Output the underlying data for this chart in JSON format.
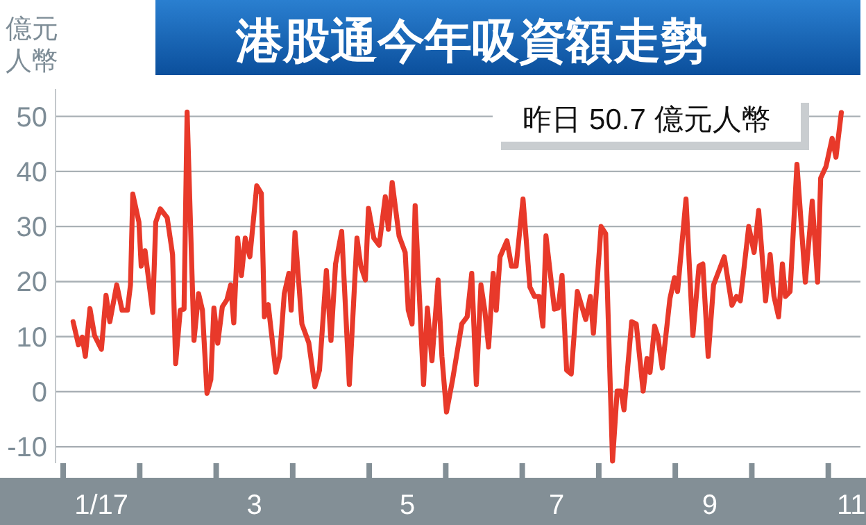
{
  "chart_data": {
    "type": "line",
    "title": "港股通今年吸資額走勢",
    "ylabel": "億元人幣",
    "annotations": [
      "昨日 50.7 億元人幣"
    ],
    "x": [
      1.13,
      1.2,
      1.25,
      1.29,
      1.35,
      1.41,
      1.5,
      1.56,
      1.61,
      1.7,
      1.77,
      1.84,
      1.88,
      1.91,
      1.99,
      2.02,
      2.07,
      2.17,
      2.21,
      2.27,
      2.36,
      2.43,
      2.47,
      2.53,
      2.58,
      2.62,
      2.71,
      2.77,
      2.82,
      2.88,
      2.93,
      2.97,
      3.02,
      3.08,
      3.14,
      3.19,
      3.23,
      3.28,
      3.33,
      3.38,
      3.44,
      3.53,
      3.59,
      3.63,
      3.68,
      3.78,
      3.83,
      3.89,
      3.95,
      3.98,
      4.03,
      4.12,
      4.21,
      4.29,
      4.35,
      4.44,
      4.5,
      4.56,
      4.64,
      4.74,
      4.84,
      4.89,
      4.95,
      4.99,
      5.06,
      5.13,
      5.21,
      5.25,
      5.3,
      5.39,
      5.47,
      5.51,
      5.56,
      5.6,
      5.71,
      5.76,
      5.82,
      5.9,
      5.95,
      6.01,
      6.09,
      6.21,
      6.28,
      6.34,
      6.4,
      6.46,
      6.51,
      6.56,
      6.62,
      6.66,
      6.71,
      6.8,
      6.86,
      6.92,
      7.01,
      7.1,
      7.16,
      7.22,
      7.27,
      7.31,
      7.42,
      7.47,
      7.52,
      7.58,
      7.64,
      7.72,
      7.83,
      7.89,
      7.93,
      8.03,
      8.09,
      8.18,
      8.24,
      8.29,
      8.33,
      8.43,
      8.49,
      8.58,
      8.63,
      8.67,
      8.73,
      8.77,
      8.83,
      8.93,
      8.99,
      9.03,
      9.14,
      9.23,
      9.31,
      9.36,
      9.43,
      9.5,
      9.64,
      9.74,
      9.8,
      9.85,
      9.96,
      10.03,
      10.09,
      10.18,
      10.24,
      10.29,
      10.35,
      10.4,
      10.44,
      10.5,
      10.59,
      10.7,
      10.79,
      10.86,
      10.9,
      10.97,
      11.05,
      11.1,
      11.17
    ],
    "series": [
      {
        "color": "#e8392a",
        "values": [
          12.7,
          8.5,
          9.9,
          6.4,
          15.1,
          10.2,
          7.7,
          17.5,
          12.7,
          19.4,
          14.8,
          14.8,
          19.4,
          35.9,
          30.8,
          22.8,
          25.6,
          14.4,
          30.8,
          33.2,
          31.6,
          24.9,
          5.1,
          14.8,
          15,
          50.8,
          9.3,
          17.8,
          14.8,
          -0.3,
          2.2,
          15.2,
          8.8,
          15.4,
          16.7,
          19.4,
          12.5,
          27.9,
          21.1,
          27.9,
          24.5,
          37.4,
          36,
          13.6,
          15.8,
          3.5,
          6.4,
          17.8,
          21.5,
          14.8,
          28.9,
          12.3,
          8.9,
          0.9,
          3.9,
          22,
          9.3,
          23.2,
          29.1,
          1.3,
          27.9,
          22.8,
          20.3,
          33.3,
          27.9,
          26.6,
          35.4,
          29.5,
          38,
          28.3,
          25.3,
          14.8,
          12.3,
          33.8,
          1.3,
          15.2,
          5.6,
          20.3,
          6.4,
          -3.7,
          2.2,
          12.3,
          13.6,
          21.5,
          1.3,
          19.4,
          14.8,
          8.1,
          21.5,
          14.8,
          24.5,
          27.4,
          22.8,
          22.8,
          35,
          19,
          17.3,
          17.3,
          11.9,
          28.3,
          15,
          15.2,
          21.1,
          3.9,
          3.2,
          18.2,
          13.1,
          17.3,
          10.6,
          30,
          28.7,
          -12.6,
          0.1,
          0.1,
          -3.3,
          12.7,
          12.3,
          0.1,
          6,
          3.5,
          11.9,
          10.2,
          4.3,
          16.9,
          20.7,
          18.2,
          35,
          10.2,
          22.8,
          23.2,
          6.4,
          19.4,
          24.5,
          15.7,
          17.3,
          16.5,
          30,
          25.3,
          32.9,
          16.5,
          24.9,
          17.3,
          13.6,
          23.2,
          17.3,
          18.2,
          41.3,
          19.9,
          34.6,
          19.9,
          38.8,
          40.9,
          46,
          42.6,
          50.7
        ]
      }
    ],
    "xlim": [
      0.9,
      11.42
    ],
    "xticks": [
      {
        "value": 1,
        "label": null
      },
      {
        "value": 2,
        "label": null
      },
      {
        "value": 3,
        "label": null
      },
      {
        "value": 4,
        "label": null
      },
      {
        "value": 5,
        "label": null
      },
      {
        "value": 6,
        "label": null
      },
      {
        "value": 7,
        "label": null
      },
      {
        "value": 8,
        "label": null
      },
      {
        "value": 9,
        "label": null
      },
      {
        "value": 10,
        "label": null
      },
      {
        "value": 11,
        "label": null
      },
      {
        "value": 1.5,
        "label": "1/17"
      },
      {
        "value": 3.5,
        "label": "3"
      },
      {
        "value": 5.5,
        "label": "5"
      },
      {
        "value": 7.45,
        "label": "7"
      },
      {
        "value": 9.45,
        "label": "9"
      },
      {
        "value": 11.3,
        "label": "11"
      }
    ],
    "ylim": [
      -13,
      55
    ],
    "yticks": [
      -10,
      0,
      10,
      20,
      30,
      40,
      50
    ],
    "grid": "y"
  }
}
